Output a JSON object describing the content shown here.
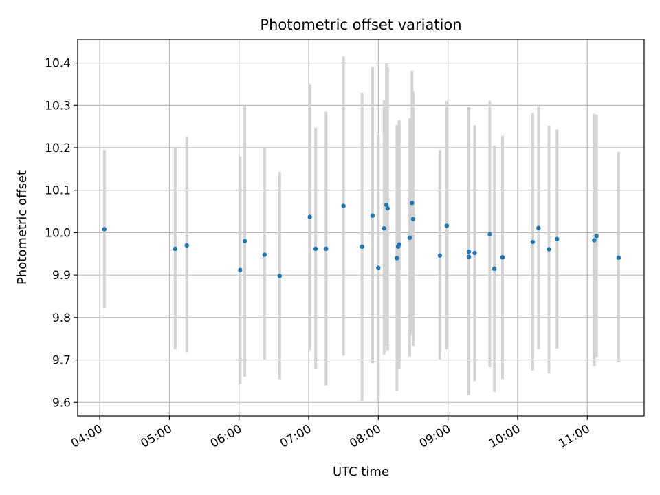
{
  "chart_data": {
    "type": "scatter",
    "title": "Photometric offset variation",
    "xlabel": "UTC time",
    "ylabel": "Photometric offset",
    "xlim": [
      "03:41",
      "11:49"
    ],
    "ylim": [
      9.568,
      10.456
    ],
    "grid": true,
    "xticks": [
      "04:00",
      "05:00",
      "06:00",
      "07:00",
      "08:00",
      "09:00",
      "10:00",
      "11:00"
    ],
    "yticks": [
      9.6,
      9.7,
      9.8,
      9.9,
      10.0,
      10.1,
      10.2,
      10.3,
      10.4
    ],
    "ytick_labels": [
      "9.6",
      "9.7",
      "9.8",
      "9.9",
      "10.0",
      "10.1",
      "10.2",
      "10.3",
      "10.4"
    ],
    "colors": {
      "points": "#1f77b4",
      "errorbars": "#d3d3d3",
      "grid": "#b0b0b0"
    },
    "points": [
      {
        "x": "04:04",
        "y": 10.008,
        "ylow": 9.822,
        "yhigh": 10.195
      },
      {
        "x": "05:05",
        "y": 9.962,
        "ylow": 9.725,
        "yhigh": 10.202
      },
      {
        "x": "05:15",
        "y": 9.97,
        "ylow": 9.718,
        "yhigh": 10.225
      },
      {
        "x": "06:01",
        "y": 9.912,
        "ylow": 9.643,
        "yhigh": 10.18
      },
      {
        "x": "06:05",
        "y": 9.98,
        "ylow": 9.66,
        "yhigh": 10.3
      },
      {
        "x": "06:22",
        "y": 9.948,
        "ylow": 9.7,
        "yhigh": 10.2
      },
      {
        "x": "06:35",
        "y": 9.898,
        "ylow": 9.655,
        "yhigh": 10.143
      },
      {
        "x": "07:01",
        "y": 10.037,
        "ylow": 9.723,
        "yhigh": 10.35
      },
      {
        "x": "07:06",
        "y": 9.962,
        "ylow": 9.68,
        "yhigh": 10.247
      },
      {
        "x": "07:15",
        "y": 9.962,
        "ylow": 9.64,
        "yhigh": 10.285
      },
      {
        "x": "07:30",
        "y": 10.063,
        "ylow": 9.71,
        "yhigh": 10.415
      },
      {
        "x": "07:46",
        "y": 9.967,
        "ylow": 9.603,
        "yhigh": 10.33
      },
      {
        "x": "07:55",
        "y": 10.04,
        "ylow": 9.692,
        "yhigh": 10.39
      },
      {
        "x": "08:00",
        "y": 9.917,
        "ylow": 9.605,
        "yhigh": 10.23
      },
      {
        "x": "08:05",
        "y": 10.01,
        "ylow": 9.712,
        "yhigh": 10.312
      },
      {
        "x": "08:07",
        "y": 10.065,
        "ylow": 9.733,
        "yhigh": 10.4
      },
      {
        "x": "08:08",
        "y": 10.057,
        "ylow": 9.723,
        "yhigh": 10.39
      },
      {
        "x": "08:16",
        "y": 9.94,
        "ylow": 9.627,
        "yhigh": 10.253
      },
      {
        "x": "08:17",
        "y": 9.967,
        "ylow": 9.682,
        "yhigh": 10.253
      },
      {
        "x": "08:18",
        "y": 9.972,
        "ylow": 9.68,
        "yhigh": 10.265
      },
      {
        "x": "08:27",
        "y": 9.988,
        "ylow": 9.708,
        "yhigh": 10.27
      },
      {
        "x": "08:29",
        "y": 10.07,
        "ylow": 9.76,
        "yhigh": 10.382
      },
      {
        "x": "08:30",
        "y": 10.032,
        "ylow": 9.733,
        "yhigh": 10.332
      },
      {
        "x": "08:53",
        "y": 9.946,
        "ylow": 9.7,
        "yhigh": 10.195
      },
      {
        "x": "08:59",
        "y": 10.016,
        "ylow": 9.725,
        "yhigh": 10.31
      },
      {
        "x": "09:18",
        "y": 9.955,
        "ylow": 9.617,
        "yhigh": 10.296
      },
      {
        "x": "09:18",
        "y": 9.943,
        "ylow": 9.64,
        "yhigh": 10.25
      },
      {
        "x": "09:23",
        "y": 9.952,
        "ylow": 9.65,
        "yhigh": 10.253
      },
      {
        "x": "09:36",
        "y": 9.996,
        "ylow": 9.683,
        "yhigh": 10.31
      },
      {
        "x": "09:40",
        "y": 9.915,
        "ylow": 9.625,
        "yhigh": 10.205
      },
      {
        "x": "09:47",
        "y": 9.942,
        "ylow": 9.655,
        "yhigh": 10.228
      },
      {
        "x": "10:13",
        "y": 9.978,
        "ylow": 9.675,
        "yhigh": 10.282
      },
      {
        "x": "10:18",
        "y": 10.011,
        "ylow": 9.725,
        "yhigh": 10.298
      },
      {
        "x": "10:27",
        "y": 9.961,
        "ylow": 9.668,
        "yhigh": 10.252
      },
      {
        "x": "10:34",
        "y": 9.985,
        "ylow": 9.727,
        "yhigh": 10.243
      },
      {
        "x": "11:06",
        "y": 9.982,
        "ylow": 9.685,
        "yhigh": 10.28
      },
      {
        "x": "11:08",
        "y": 9.992,
        "ylow": 9.707,
        "yhigh": 10.278
      },
      {
        "x": "11:27",
        "y": 9.941,
        "ylow": 9.695,
        "yhigh": 10.19
      }
    ]
  }
}
